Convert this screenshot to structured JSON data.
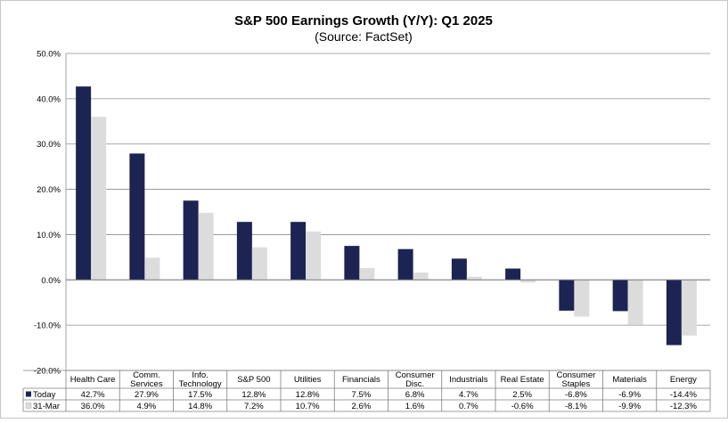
{
  "chart_data": {
    "type": "bar",
    "title": "S&P 500 Earnings Growth (Y/Y): Q1 2025",
    "subtitle": "(Source: FactSet)",
    "categories": [
      "Health Care",
      "Comm.\nServices",
      "Info.\nTechnology",
      "S&P 500",
      "Utilities",
      "Financials",
      "Consumer\nDisc.",
      "Industrials",
      "Real Estate",
      "Consumer\nStaples",
      "Materials",
      "Energy"
    ],
    "series": [
      {
        "name": "Today",
        "color": "#1b2452",
        "values": [
          42.7,
          27.9,
          17.5,
          12.8,
          12.8,
          7.5,
          6.8,
          4.7,
          2.5,
          -6.8,
          -6.9,
          -14.4
        ],
        "labels": [
          "42.7%",
          "27.9%",
          "17.5%",
          "12.8%",
          "12.8%",
          "7.5%",
          "6.8%",
          "4.7%",
          "2.5%",
          "-6.8%",
          "-6.9%",
          "-14.4%"
        ]
      },
      {
        "name": "31-Mar",
        "color": "#dcdcdc",
        "values": [
          36.0,
          4.9,
          14.8,
          7.2,
          10.7,
          2.6,
          1.6,
          0.7,
          -0.6,
          -8.1,
          -9.9,
          -12.3
        ],
        "labels": [
          "36.0%",
          "4.9%",
          "14.8%",
          "7.2%",
          "10.7%",
          "2.6%",
          "1.6%",
          "0.7%",
          "-0.6%",
          "-8.1%",
          "-9.9%",
          "-12.3%"
        ]
      }
    ],
    "yaxis": {
      "min": -20,
      "max": 50,
      "step": 10,
      "tick_labels": [
        "-20.0%",
        "-10.0%",
        "0.0%",
        "10.0%",
        "20.0%",
        "30.0%",
        "40.0%",
        "50.0%"
      ]
    },
    "grid": true,
    "legend": "data-table-below"
  }
}
